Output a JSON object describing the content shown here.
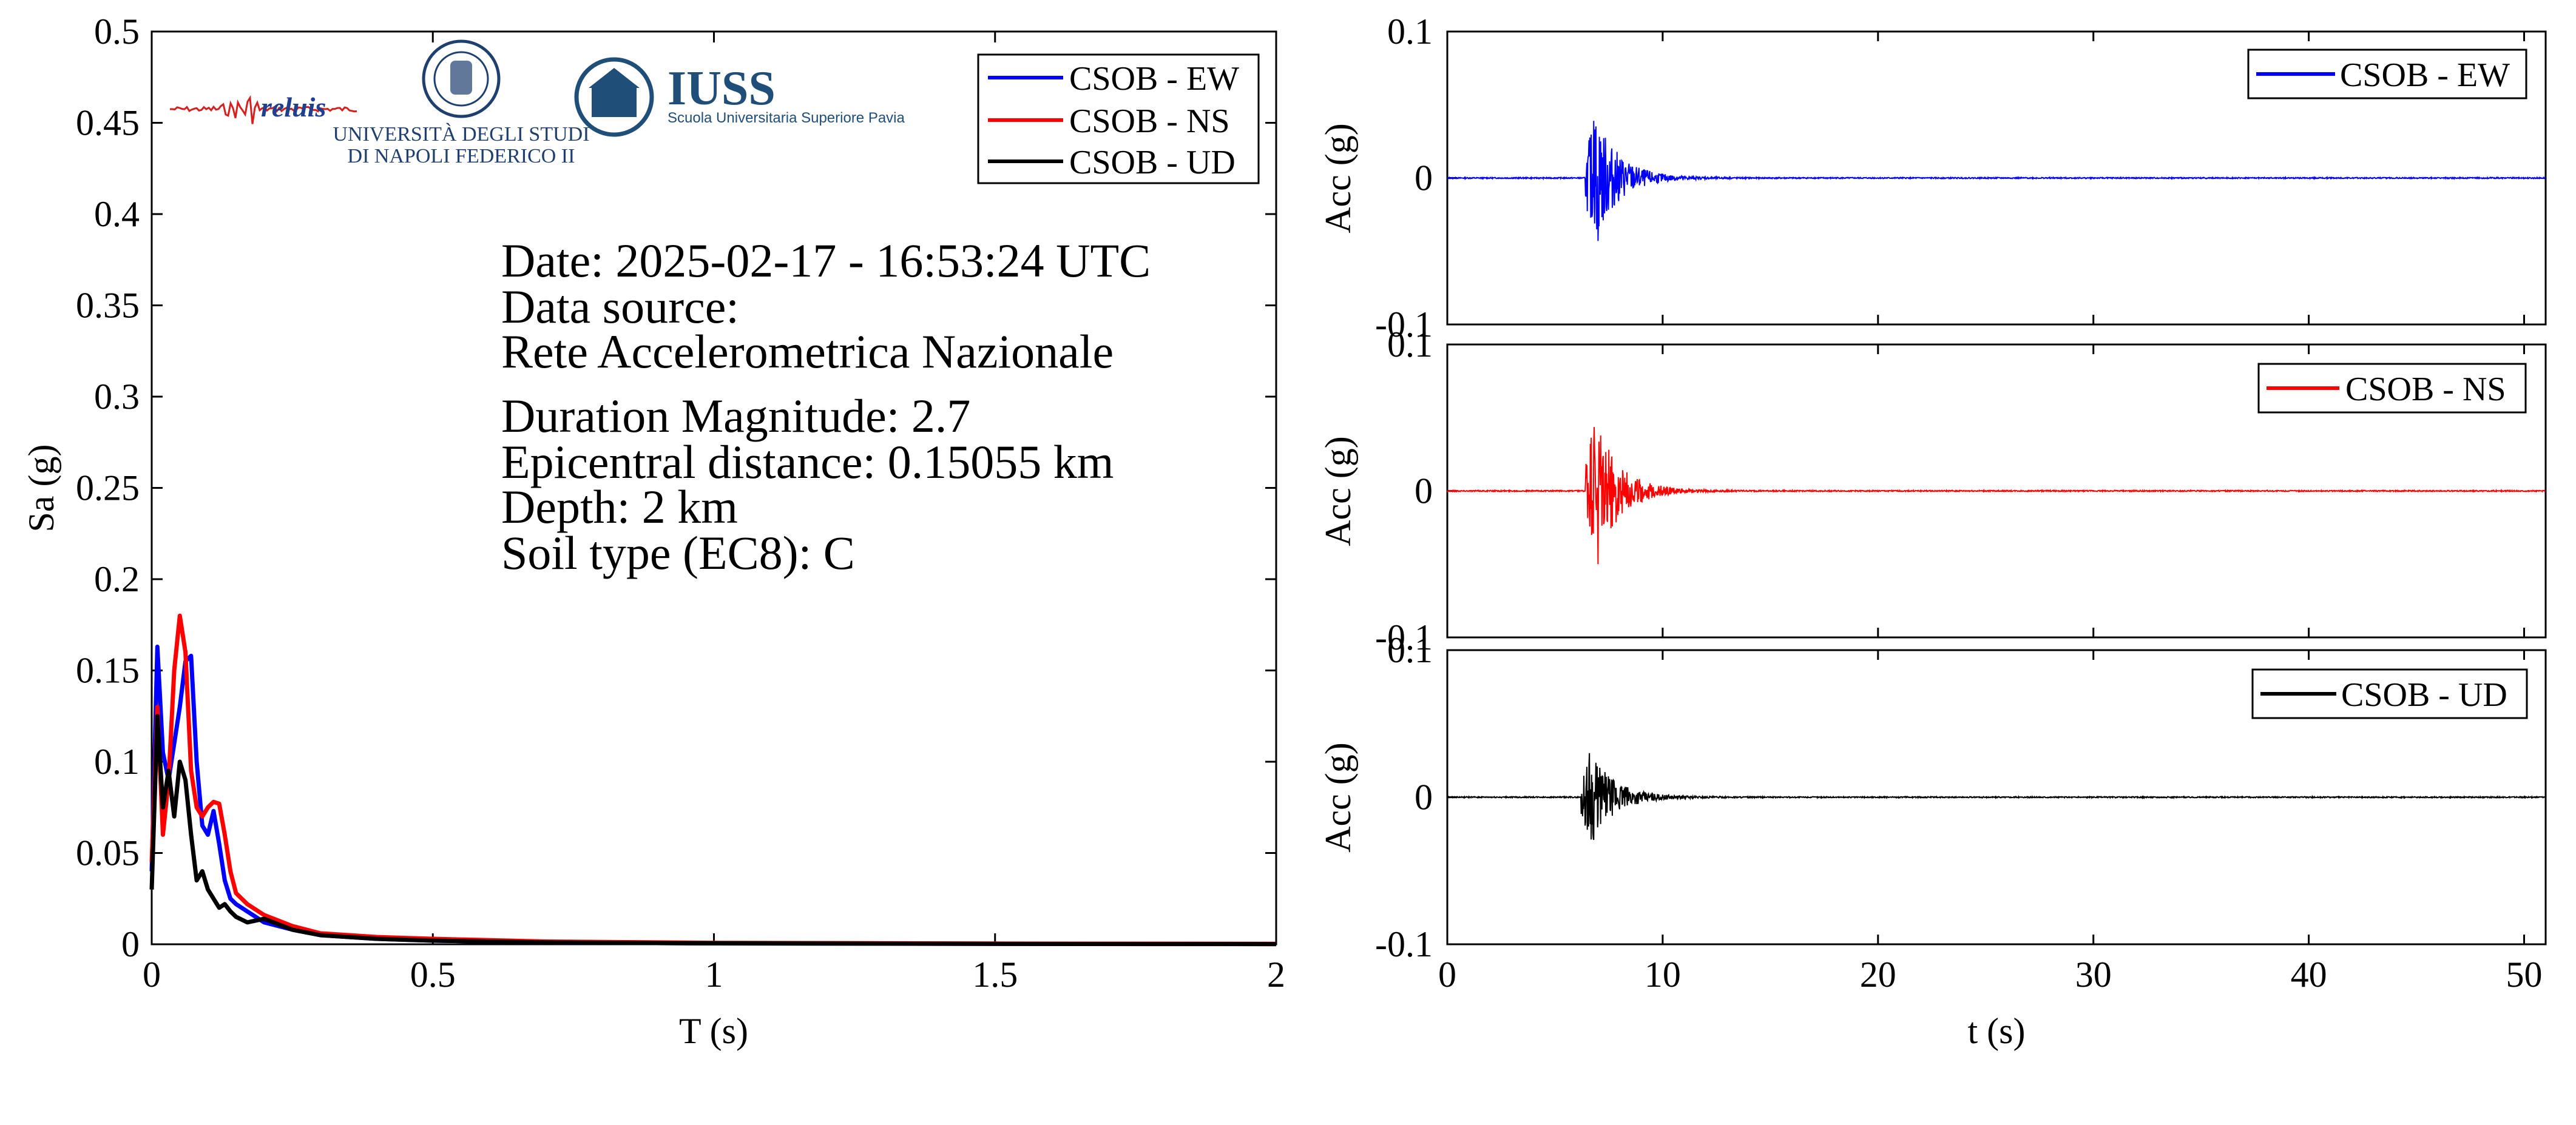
{
  "colors": {
    "ew": "#0000ff",
    "ns": "#ff0000",
    "ud": "#000000",
    "iuss": "#1f4e79",
    "axis": "#000000"
  },
  "logos": {
    "reluis": "reluis",
    "unina_line1": "UNIVERSITÀ DEGLI STUDI",
    "unina_line2": "DI NAPOLI FEDERICO II",
    "iuss_title": "IUSS",
    "iuss_subtitle": "Scuola Universitaria Superiore Pavia"
  },
  "info": {
    "date": "Date: 2025-02-17 - 16:53:24 UTC",
    "source_label": "Data source:",
    "source": "Rete Accelerometrica Nazionale",
    "magnitude": "Duration Magnitude: 2.7",
    "distance": "Epicentral distance: 0.15055 km",
    "depth": "Depth: 2 km",
    "soil": "Soil type (EC8): C"
  },
  "chart_data": [
    {
      "type": "line",
      "xlabel": "T (s)",
      "ylabel": "Sa (g)",
      "xlim": [
        0,
        2
      ],
      "ylim": [
        0,
        0.5
      ],
      "xticks": [
        "0",
        "0.5",
        "1",
        "1.5",
        "2"
      ],
      "yticks": [
        "0",
        "0.05",
        "0.1",
        "0.15",
        "0.2",
        "0.25",
        "0.3",
        "0.35",
        "0.4",
        "0.45",
        "0.5"
      ],
      "legend_position": "top-right",
      "grid": false,
      "series": [
        {
          "name": "CSOB - EW",
          "color": "#0000ff",
          "x": [
            0,
            0.01,
            0.02,
            0.03,
            0.04,
            0.05,
            0.06,
            0.07,
            0.08,
            0.09,
            0.1,
            0.11,
            0.12,
            0.13,
            0.14,
            0.15,
            0.17,
            0.2,
            0.25,
            0.3,
            0.4,
            0.5,
            0.7,
            1.0,
            1.5,
            2.0
          ],
          "y": [
            0.04,
            0.163,
            0.105,
            0.09,
            0.11,
            0.13,
            0.155,
            0.158,
            0.1,
            0.065,
            0.06,
            0.073,
            0.055,
            0.035,
            0.025,
            0.022,
            0.018,
            0.012,
            0.008,
            0.005,
            0.003,
            0.002,
            0.001,
            0.0005,
            0.0003,
            0.0002
          ]
        },
        {
          "name": "CSOB - NS",
          "color": "#ff0000",
          "x": [
            0,
            0.01,
            0.02,
            0.03,
            0.04,
            0.05,
            0.06,
            0.07,
            0.08,
            0.09,
            0.1,
            0.11,
            0.12,
            0.13,
            0.14,
            0.15,
            0.17,
            0.2,
            0.25,
            0.3,
            0.4,
            0.5,
            0.7,
            1.0,
            1.5,
            2.0
          ],
          "y": [
            0.045,
            0.13,
            0.06,
            0.09,
            0.15,
            0.18,
            0.16,
            0.095,
            0.075,
            0.07,
            0.075,
            0.078,
            0.077,
            0.06,
            0.04,
            0.028,
            0.022,
            0.016,
            0.01,
            0.006,
            0.004,
            0.003,
            0.0015,
            0.0008,
            0.0004,
            0.0002
          ]
        },
        {
          "name": "CSOB - UD",
          "color": "#000000",
          "x": [
            0,
            0.01,
            0.02,
            0.03,
            0.04,
            0.05,
            0.06,
            0.07,
            0.08,
            0.09,
            0.1,
            0.11,
            0.12,
            0.13,
            0.14,
            0.15,
            0.17,
            0.2,
            0.25,
            0.3,
            0.4,
            0.5,
            0.7,
            1.0,
            1.5,
            2.0
          ],
          "y": [
            0.03,
            0.125,
            0.075,
            0.095,
            0.07,
            0.1,
            0.09,
            0.06,
            0.035,
            0.04,
            0.03,
            0.025,
            0.02,
            0.022,
            0.018,
            0.015,
            0.012,
            0.014,
            0.008,
            0.005,
            0.003,
            0.002,
            0.001,
            0.0005,
            0.0002,
            0.0001
          ]
        }
      ]
    },
    {
      "type": "line",
      "ylabel": "Acc (g)",
      "xlim": [
        0,
        51
      ],
      "ylim": [
        -0.1,
        0.1
      ],
      "yticks": [
        "0.1",
        "0",
        "-0.1"
      ],
      "legend_position": "top-right",
      "series": [
        {
          "name": "CSOB - EW",
          "color": "#0000ff",
          "onset_s": 6.4,
          "peak_pos_g": 0.039,
          "peak_neg_g": -0.043,
          "decay_end_s": 12
        }
      ]
    },
    {
      "type": "line",
      "ylabel": "Acc (g)",
      "xlim": [
        0,
        51
      ],
      "ylim": [
        -0.1,
        0.1
      ],
      "yticks": [
        "0.1",
        "0",
        "-0.1"
      ],
      "legend_position": "top-right",
      "series": [
        {
          "name": "CSOB - NS",
          "color": "#ff0000",
          "onset_s": 6.4,
          "peak_pos_g": 0.032,
          "peak_neg_g": -0.05,
          "decay_end_s": 12
        }
      ]
    },
    {
      "type": "line",
      "xlabel": "t (s)",
      "ylabel": "Acc (g)",
      "xlim": [
        0,
        51
      ],
      "ylim": [
        -0.1,
        0.1
      ],
      "xticks": [
        "0",
        "10",
        "20",
        "30",
        "40",
        "50"
      ],
      "yticks": [
        "0.1",
        "0",
        "-0.1"
      ],
      "legend_position": "top-right",
      "series": [
        {
          "name": "CSOB - UD",
          "color": "#000000",
          "onset_s": 6.2,
          "peak_pos_g": 0.03,
          "peak_neg_g": -0.029,
          "decay_end_s": 11
        }
      ]
    }
  ]
}
